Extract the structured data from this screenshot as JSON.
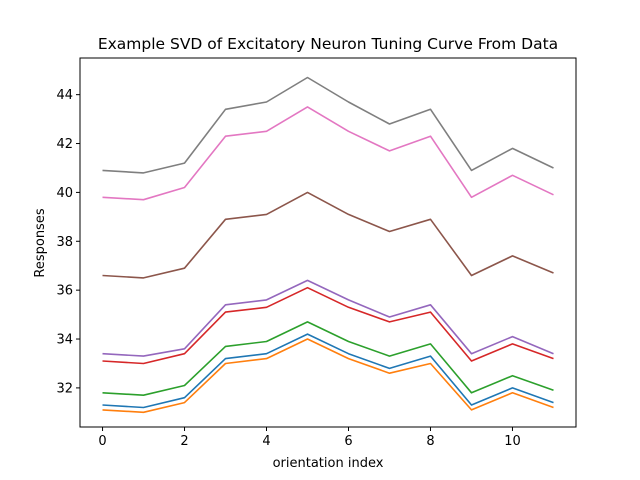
{
  "chart_data": {
    "type": "line",
    "title": "Example SVD of Excitatory Neuron Tuning Curve From Data",
    "xlabel": "orientation index",
    "ylabel": "Responses",
    "x": [
      0,
      1,
      2,
      3,
      4,
      5,
      6,
      7,
      8,
      9,
      10,
      11
    ],
    "xlim": [
      -0.55,
      11.55
    ],
    "ylim": [
      30.4,
      45.5
    ],
    "xticks": [
      0,
      2,
      4,
      6,
      8,
      10
    ],
    "yticks": [
      32,
      34,
      36,
      38,
      40,
      42,
      44
    ],
    "grid": false,
    "legend": "none",
    "series": [
      {
        "color": "#1f77b4",
        "values": [
          31.3,
          31.2,
          31.6,
          33.2,
          33.4,
          34.2,
          33.4,
          32.8,
          33.3,
          31.3,
          32.0,
          31.4
        ]
      },
      {
        "color": "#ff7f0e",
        "values": [
          31.1,
          31.0,
          31.4,
          33.0,
          33.2,
          34.0,
          33.2,
          32.6,
          33.0,
          31.1,
          31.8,
          31.2
        ]
      },
      {
        "color": "#2ca02c",
        "values": [
          31.8,
          31.7,
          32.1,
          33.7,
          33.9,
          34.7,
          33.9,
          33.3,
          33.8,
          31.8,
          32.5,
          31.9
        ]
      },
      {
        "color": "#d62728",
        "values": [
          33.1,
          33.0,
          33.4,
          35.1,
          35.3,
          36.1,
          35.3,
          34.7,
          35.1,
          33.1,
          33.8,
          33.2
        ]
      },
      {
        "color": "#9467bd",
        "values": [
          33.4,
          33.3,
          33.6,
          35.4,
          35.6,
          36.4,
          35.6,
          34.9,
          35.4,
          33.4,
          34.1,
          33.4
        ]
      },
      {
        "color": "#8c564b",
        "values": [
          36.6,
          36.5,
          36.9,
          38.9,
          39.1,
          40.0,
          39.1,
          38.4,
          38.9,
          36.6,
          37.4,
          36.7
        ]
      },
      {
        "color": "#e377c2",
        "values": [
          39.8,
          39.7,
          40.2,
          42.3,
          42.5,
          43.5,
          42.5,
          41.7,
          42.3,
          39.8,
          40.7,
          39.9
        ]
      },
      {
        "color": "#7f7f7f",
        "values": [
          40.9,
          40.8,
          41.2,
          43.4,
          43.7,
          44.7,
          43.7,
          42.8,
          43.4,
          40.9,
          41.8,
          41.0
        ]
      }
    ]
  }
}
